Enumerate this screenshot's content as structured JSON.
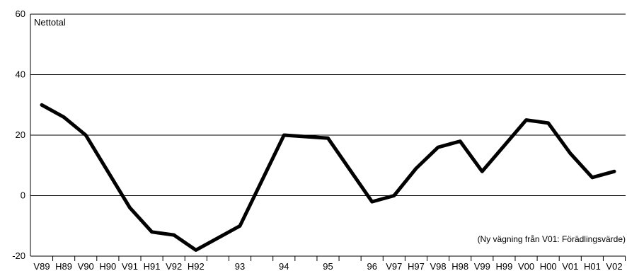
{
  "chart_data": {
    "type": "line",
    "ylabel": "Nettotal",
    "annotation": "(Ny vägning från V01: Förädlingsvärde)",
    "ylim": [
      -20,
      60
    ],
    "yticks": [
      -20,
      0,
      20,
      40,
      60
    ],
    "grid": "horizontal",
    "x_tick_labels": [
      "V89",
      "H89",
      "V90",
      "H90",
      "V91",
      "H91",
      "V92",
      "H92",
      "",
      "93",
      "",
      "94",
      "",
      "95",
      "",
      "96",
      "V97",
      "H97",
      "V98",
      "H98",
      "V99",
      "H99",
      "V00",
      "H00",
      "V01",
      "H01",
      "V02"
    ],
    "series": [
      {
        "color": "#000000",
        "points": [
          {
            "x": 0,
            "y": 30
          },
          {
            "x": 1,
            "y": 26
          },
          {
            "x": 2,
            "y": 20
          },
          {
            "x": 4,
            "y": -4
          },
          {
            "x": 5,
            "y": -12
          },
          {
            "x": 6,
            "y": -13
          },
          {
            "x": 7,
            "y": -18
          },
          {
            "x": 9,
            "y": -10
          },
          {
            "x": 11,
            "y": 20
          },
          {
            "x": 12,
            "y": 19.5
          },
          {
            "x": 13,
            "y": 19
          },
          {
            "x": 15,
            "y": -2
          },
          {
            "x": 16,
            "y": 0
          },
          {
            "x": 17,
            "y": 9
          },
          {
            "x": 18,
            "y": 16
          },
          {
            "x": 19,
            "y": 18
          },
          {
            "x": 20,
            "y": 8
          },
          {
            "x": 21,
            "y": 16.5
          },
          {
            "x": 22,
            "y": 25
          },
          {
            "x": 23,
            "y": 24
          },
          {
            "x": 24,
            "y": 14
          },
          {
            "x": 25,
            "y": 6
          },
          {
            "x": 26,
            "y": 8
          }
        ]
      }
    ]
  }
}
